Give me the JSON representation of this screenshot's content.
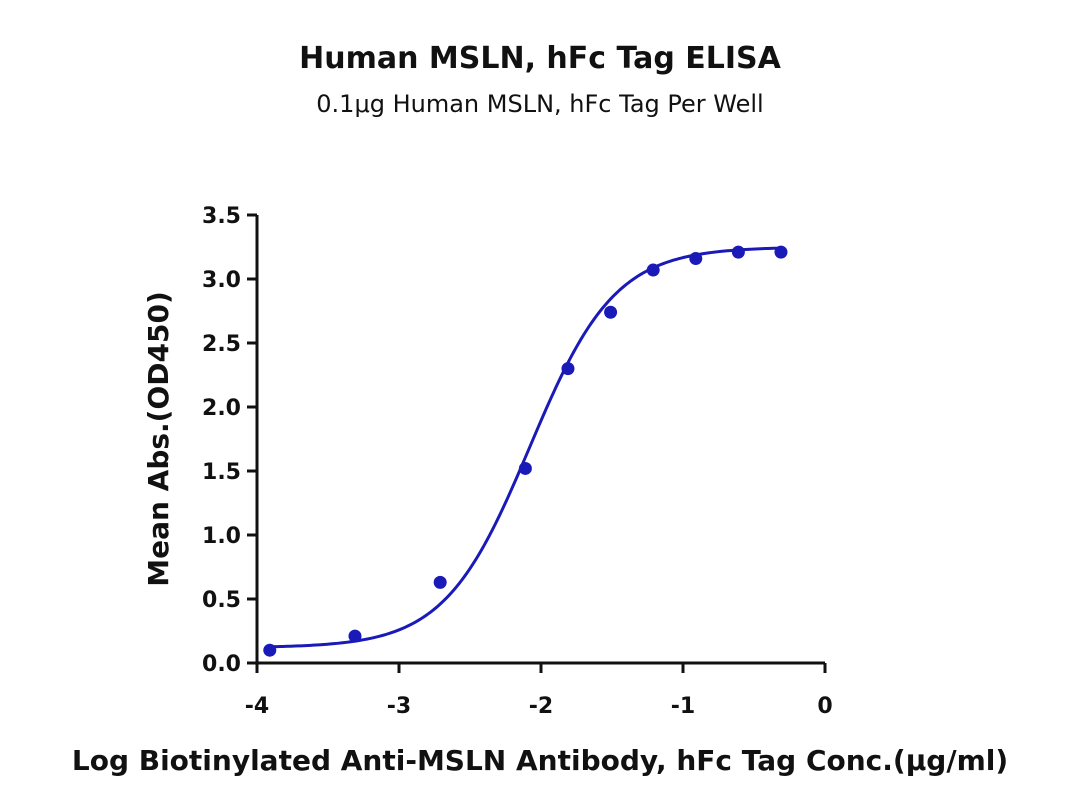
{
  "chart_data": {
    "type": "scatter",
    "title": "Human MSLN, hFc Tag ELISA",
    "subtitle": "0.1μg Human MSLN, hFc Tag Per Well",
    "xlabel": "Log Biotinylated Anti-MSLN Antibody, hFc Tag Conc.(μg/ml)",
    "ylabel": "Mean Abs.(OD450)",
    "xlim": [
      -4,
      0
    ],
    "ylim": [
      0,
      3.5
    ],
    "xticks": [
      -4,
      -3,
      -2,
      -1,
      0
    ],
    "xtick_labels": [
      "-4",
      "-3",
      "-2",
      "-1",
      "0"
    ],
    "yticks": [
      0,
      0.5,
      1.0,
      1.5,
      2.0,
      2.5,
      3.0,
      3.5
    ],
    "ytick_labels": [
      "0.0",
      "0.5",
      "1.0",
      "1.5",
      "2.0",
      "2.5",
      "3.0",
      "3.5"
    ],
    "grid": false,
    "color": "#1a1ab8",
    "series": [
      {
        "points": [
          {
            "x": -3.91,
            "y": 0.1
          },
          {
            "x": -3.31,
            "y": 0.21
          },
          {
            "x": -2.71,
            "y": 0.63
          },
          {
            "x": -2.11,
            "y": 1.52
          },
          {
            "x": -1.81,
            "y": 2.3
          },
          {
            "x": -1.51,
            "y": 2.74
          },
          {
            "x": -1.21,
            "y": 3.07
          },
          {
            "x": -0.91,
            "y": 3.16
          },
          {
            "x": -0.61,
            "y": 3.21
          },
          {
            "x": -0.31,
            "y": 3.21
          }
        ],
        "fit": {
          "model": "4PL",
          "bottom": 0.12,
          "top": 3.25,
          "logEC50": -2.08,
          "hill": 1.45,
          "x_range": [
            -3.91,
            -0.31
          ]
        }
      }
    ]
  }
}
